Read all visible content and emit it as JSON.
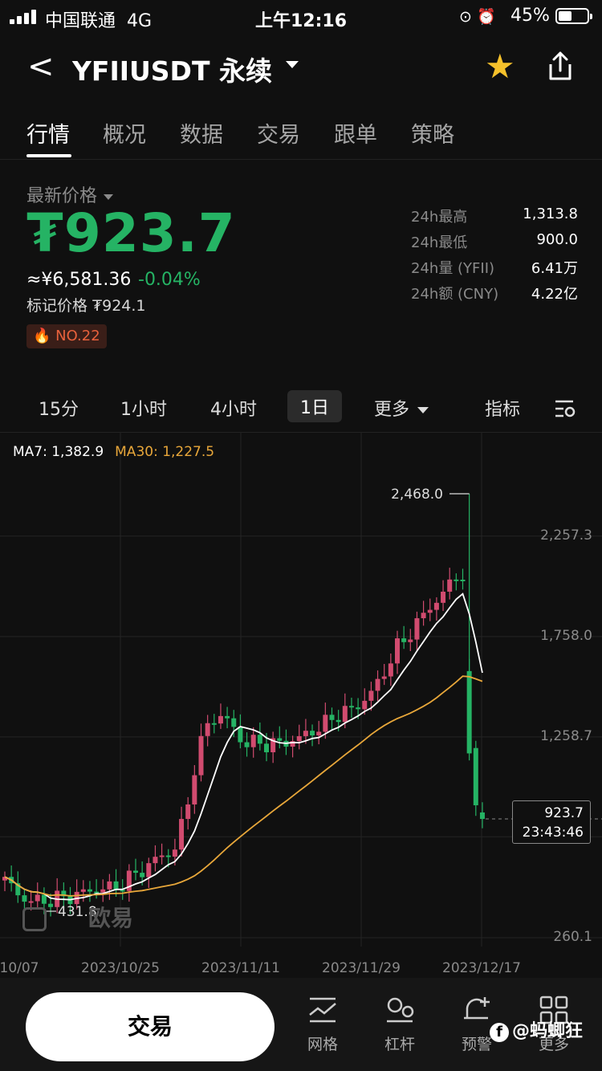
{
  "status_bar": {
    "carrier": "中国联通",
    "network": "4G",
    "time": "上午12:16",
    "battery": "45%"
  },
  "header": {
    "title": "YFIIUSDT 永续"
  },
  "tabs": [
    "行情",
    "概况",
    "数据",
    "交易",
    "跟单",
    "策略"
  ],
  "price": {
    "label": "最新价格",
    "last": "₮923.7",
    "cny": "≈¥6,581.36",
    "change": "-0.04%",
    "mark": "标记价格 ₮924.1",
    "rank": "NO.22"
  },
  "stats": [
    {
      "k": "24h最高",
      "v": "1,313.8"
    },
    {
      "k": "24h最低",
      "v": "900.0"
    },
    {
      "k": "24h量 (YFII)",
      "v": "6.41万"
    },
    {
      "k": "24h额 (CNY)",
      "v": "4.22亿"
    }
  ],
  "intervals": {
    "items": [
      "15分",
      "1小时",
      "4小时",
      "1日",
      "更多",
      "指标"
    ],
    "active": "1日"
  },
  "chart_data": {
    "type": "candlestick",
    "ma7_label": "MA7: 1,382.9",
    "ma30_label": "MA30: 1,227.5",
    "y_ticks": [
      "2,257.3",
      "1,758.0",
      "1,258.7",
      "260.1"
    ],
    "y_tick_values": [
      2257.3,
      1758.0,
      1258.7,
      260.1
    ],
    "x_ticks": [
      "10/07",
      "2023/10/25",
      "2023/11/11",
      "2023/11/29",
      "2023/12/17"
    ],
    "high_label": "2,468.0",
    "low_label": "431.8",
    "last_price": "923.7",
    "countdown": "23:43:46",
    "ylim": [
      260.1,
      2468.0
    ]
  },
  "watermark": "欧易",
  "bottom_nav": {
    "trade": "交易",
    "items": [
      {
        "label": "网格",
        "icon": "grid-trade-icon"
      },
      {
        "label": "杠杆",
        "icon": "leverage-icon"
      },
      {
        "label": "预警",
        "icon": "alert-bell-icon"
      },
      {
        "label": "更多",
        "icon": "more-grid-icon"
      }
    ]
  },
  "credit": "@蚂蝍狂",
  "colors": {
    "up": "#25b364",
    "down": "#d14b6f",
    "ma7": "#ffffff",
    "ma30": "#e8a73a",
    "star": "#f5c12b"
  }
}
